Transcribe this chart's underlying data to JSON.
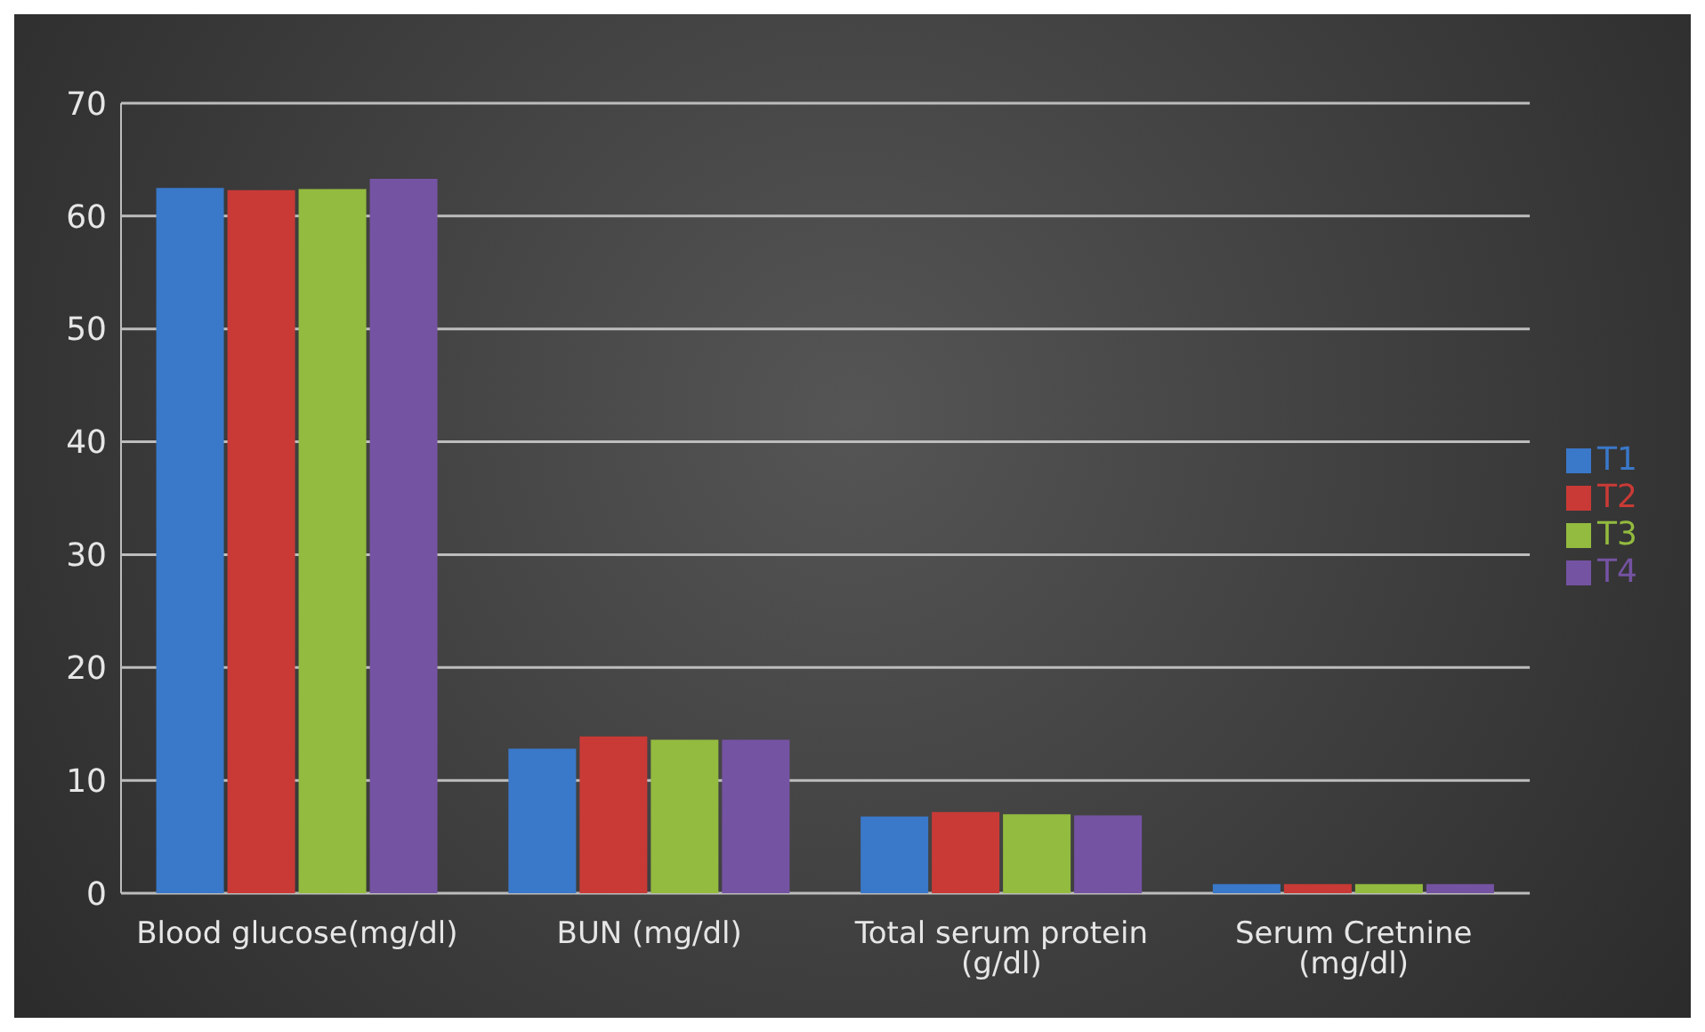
{
  "chart_data": {
    "type": "bar",
    "categories": [
      "Blood glucose(mg/dl)",
      "BUN (mg/dl)",
      "Total serum protein (g/dl)",
      "Serum Cretnine (mg/dl)"
    ],
    "series": [
      {
        "name": "T1",
        "color": "#3a78c9",
        "values": [
          62.5,
          12.8,
          6.8,
          0.8
        ]
      },
      {
        "name": "T2",
        "color": "#c93a36",
        "values": [
          62.3,
          13.9,
          7.2,
          0.8
        ]
      },
      {
        "name": "T3",
        "color": "#93bb3f",
        "values": [
          62.4,
          13.6,
          7.0,
          0.8
        ]
      },
      {
        "name": "T4",
        "color": "#7553a3",
        "values": [
          63.3,
          13.6,
          6.9,
          0.8
        ]
      }
    ],
    "ylim": [
      0,
      70
    ],
    "yticks": [
      0,
      10,
      20,
      30,
      40,
      50,
      60,
      70
    ],
    "grid": "y",
    "legend": "right"
  }
}
